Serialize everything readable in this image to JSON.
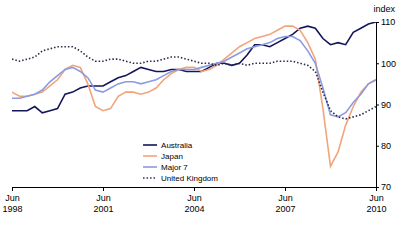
{
  "chart_data": {
    "type": "line",
    "y_label": "index",
    "categories": [
      "Jun 1998",
      null,
      null,
      null,
      null,
      null,
      null,
      null,
      null,
      null,
      null,
      null,
      "Jun 2001",
      null,
      null,
      null,
      null,
      null,
      null,
      null,
      null,
      null,
      null,
      null,
      "Jun 2004",
      null,
      null,
      null,
      null,
      null,
      null,
      null,
      null,
      null,
      null,
      null,
      "Jun 2007",
      null,
      null,
      null,
      null,
      null,
      null,
      null,
      null,
      null,
      null,
      null,
      "Jun 2010"
    ],
    "series": [
      {
        "name": "Australia",
        "color": "#15155c",
        "line_style": "solid",
        "values": [
          88.5,
          88.5,
          88.5,
          89.5,
          88,
          88.5,
          89,
          92.5,
          93,
          94,
          94.5,
          94.5,
          94.5,
          95.5,
          96.5,
          97,
          98,
          99,
          98.5,
          98,
          98,
          98.5,
          98.5,
          98,
          98,
          98,
          99,
          100,
          100,
          99.5,
          100,
          102,
          104.5,
          104.5,
          104,
          105,
          106,
          107,
          108.5,
          109,
          108.5,
          106,
          104.5,
          105,
          104.5,
          107.5,
          108.5,
          109.5,
          110
        ]
      },
      {
        "name": "Japan",
        "color": "#f2a47a",
        "line_style": "solid",
        "values": [
          93,
          92,
          92,
          92.5,
          93,
          94.5,
          96,
          98.5,
          99.5,
          99,
          95,
          89.5,
          88.5,
          89,
          92,
          93,
          93,
          92.5,
          93,
          94,
          96,
          97.5,
          98.5,
          99,
          99,
          98,
          98.5,
          99.5,
          101,
          102.5,
          104,
          105,
          106,
          106.5,
          107,
          108,
          109,
          109,
          108,
          105,
          101,
          89,
          75,
          78.5,
          85,
          89.5,
          93,
          95,
          96
        ]
      },
      {
        "name": "Major 7",
        "color": "#8c9ae0",
        "line_style": "solid",
        "values": [
          91.5,
          91.5,
          92,
          92.5,
          93.5,
          95.5,
          97,
          98.5,
          99,
          98,
          96.5,
          93.5,
          93,
          94,
          95,
          95.5,
          95.5,
          95,
          95.5,
          96,
          97,
          98,
          98.5,
          98.5,
          98.5,
          99,
          99.5,
          100,
          100.5,
          101.5,
          102.5,
          103.5,
          104,
          104.5,
          105,
          106,
          106.5,
          106.5,
          105.5,
          103,
          100,
          94,
          87.5,
          87,
          88,
          90.5,
          92.5,
          95,
          96
        ]
      },
      {
        "name": "United Kingdom",
        "color": "#2a2a48",
        "line_style": "dotted",
        "values": [
          101,
          100.5,
          101,
          101.5,
          103,
          103.5,
          104,
          104,
          104,
          103,
          101.5,
          100.5,
          100.5,
          101,
          101,
          100.5,
          100,
          100,
          100.5,
          100.5,
          101,
          101.5,
          101.5,
          101,
          100.5,
          100,
          100,
          99.5,
          100,
          99.5,
          100,
          99.5,
          100,
          100,
          100,
          100.5,
          100.5,
          100.5,
          100,
          99.5,
          98,
          93,
          88.5,
          87,
          86.5,
          87,
          87.5,
          88.5,
          89.5
        ]
      }
    ],
    "ylim": [
      70,
      110
    ],
    "yticks": [
      70,
      80,
      90,
      100,
      110
    ],
    "grid": false,
    "legend": "lower center"
  }
}
